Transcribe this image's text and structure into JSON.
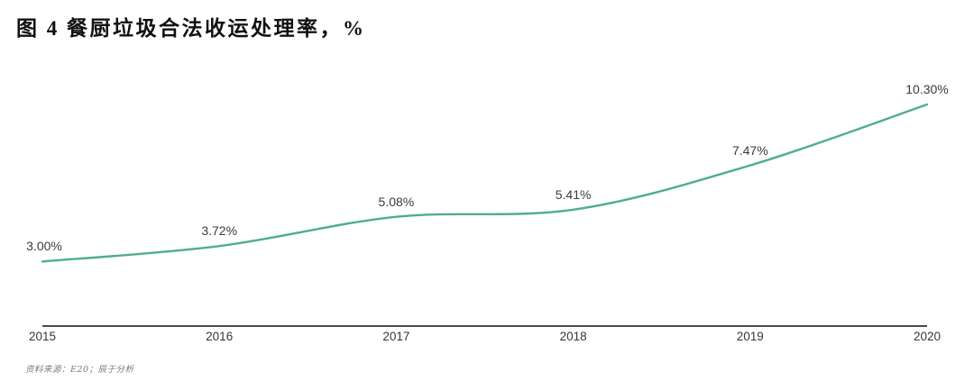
{
  "title": "图 4 餐厨垃圾合法收运处理率，%",
  "source_note": "资料来源：E20；辰于分析",
  "chart_data": {
    "type": "line",
    "title": "餐厨垃圾合法收运处理率",
    "unit": "%",
    "categories": [
      "2015",
      "2016",
      "2017",
      "2018",
      "2019",
      "2020"
    ],
    "values": [
      3.0,
      3.72,
      5.08,
      5.41,
      7.47,
      10.3
    ],
    "point_labels": [
      "3.00%",
      "3.72%",
      "5.08%",
      "5.41%",
      "7.47%",
      "10.30%"
    ],
    "xlabel": "",
    "ylabel": "",
    "ylim": [
      0,
      11
    ],
    "grid": false,
    "legend": "none",
    "line_color": "#4fae8c",
    "axis_color": "#4a4a4a",
    "label_color": "#3a3a3a"
  }
}
